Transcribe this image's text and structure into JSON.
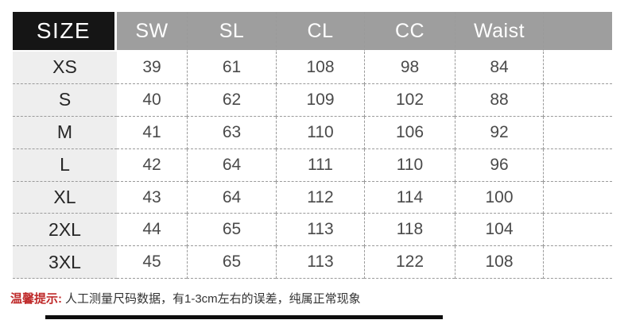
{
  "table": {
    "header": {
      "size_label": "SIZE",
      "columns": [
        "SW",
        "SL",
        "CL",
        "CC",
        "Waist"
      ]
    },
    "rows": [
      {
        "size": "XS",
        "values": [
          39,
          61,
          108,
          98,
          84
        ]
      },
      {
        "size": "S",
        "values": [
          40,
          62,
          109,
          102,
          88
        ]
      },
      {
        "size": "M",
        "values": [
          41,
          63,
          110,
          106,
          92
        ]
      },
      {
        "size": "L",
        "values": [
          42,
          64,
          111,
          110,
          96
        ]
      },
      {
        "size": "XL",
        "values": [
          43,
          64,
          112,
          114,
          100
        ]
      },
      {
        "size": "2XL",
        "values": [
          44,
          65,
          113,
          118,
          104
        ]
      },
      {
        "size": "3XL",
        "values": [
          45,
          65,
          113,
          122,
          108
        ]
      }
    ]
  },
  "note": {
    "label": "温馨提示:",
    "text": "人工测量尺码数据，有1-3cm左右的误差，纯属正常现象"
  },
  "colors": {
    "header_black": "#151515",
    "header_gray": "#9e9e9e",
    "size_column_bg": "#eeeeee",
    "dash_border": "#9a9a9a",
    "note_accent_red": "#bf2a2a"
  },
  "chart_data": {
    "type": "table",
    "title": "Garment size chart (cm)",
    "columns": [
      "SIZE",
      "SW",
      "SL",
      "CL",
      "CC",
      "Waist"
    ],
    "rows": [
      [
        "XS",
        39,
        61,
        108,
        98,
        84
      ],
      [
        "S",
        40,
        62,
        109,
        102,
        88
      ],
      [
        "M",
        41,
        63,
        110,
        106,
        92
      ],
      [
        "L",
        42,
        64,
        111,
        110,
        96
      ],
      [
        "XL",
        43,
        64,
        112,
        114,
        100
      ],
      [
        "2XL",
        44,
        65,
        113,
        118,
        104
      ],
      [
        "3XL",
        45,
        65,
        113,
        122,
        108
      ]
    ],
    "footnote": "温馨提示: 人工测量尺码数据，有1-3cm左右的误差，纯属正常现象"
  }
}
